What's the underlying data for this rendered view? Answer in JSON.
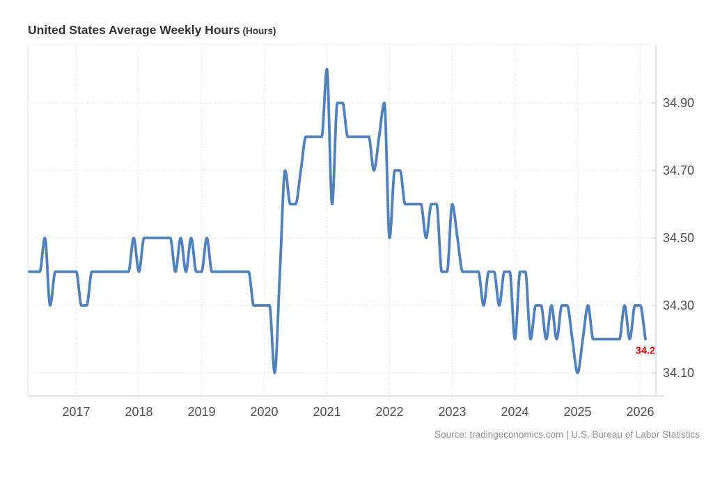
{
  "header": {
    "title": "United States Average Weekly Hours",
    "unit_suffix": " (Hours)"
  },
  "footer": {
    "source": "Source: tradingeconomics.com | U.S. Bureau of Labor Statistics"
  },
  "chart_data": {
    "type": "line",
    "title": "United States Average Weekly Hours",
    "ylabel": "Hours",
    "xlabel": "",
    "legend": "none",
    "grid": "dotted",
    "line_color": "#4f81bc",
    "last_value_label": "34.2",
    "last_value_color": "#e00000",
    "x_tick_labels": [
      "2017",
      "2018",
      "2019",
      "2020",
      "2021",
      "2022",
      "2023",
      "2024",
      "2025",
      "2026"
    ],
    "y_tick_labels": [
      "34.10",
      "34.30",
      "34.50",
      "34.70",
      "34.90"
    ],
    "y_ticks": [
      34.1,
      34.3,
      34.5,
      34.7,
      34.9
    ],
    "ylim": [
      34.03,
      35.07
    ],
    "frequency": "monthly",
    "start_period": "2016-04",
    "end_period": "2026-02",
    "series": [
      {
        "name": "United States Average Weekly Hours",
        "values": [
          34.4,
          34.4,
          34.4,
          34.5,
          34.3,
          34.4,
          34.4,
          34.4,
          34.4,
          34.4,
          34.3,
          34.3,
          34.4,
          34.4,
          34.4,
          34.4,
          34.4,
          34.4,
          34.4,
          34.4,
          34.5,
          34.4,
          34.5,
          34.5,
          34.5,
          34.5,
          34.5,
          34.5,
          34.4,
          34.5,
          34.4,
          34.5,
          34.4,
          34.4,
          34.5,
          34.4,
          34.4,
          34.4,
          34.4,
          34.4,
          34.4,
          34.4,
          34.4,
          34.3,
          34.3,
          34.3,
          34.3,
          34.1,
          34.4,
          34.7,
          34.6,
          34.6,
          34.7,
          34.8,
          34.8,
          34.8,
          34.8,
          35.0,
          34.6,
          34.9,
          34.9,
          34.8,
          34.8,
          34.8,
          34.8,
          34.8,
          34.7,
          34.8,
          34.9,
          34.5,
          34.7,
          34.7,
          34.6,
          34.6,
          34.6,
          34.6,
          34.5,
          34.6,
          34.6,
          34.4,
          34.4,
          34.6,
          34.5,
          34.4,
          34.4,
          34.4,
          34.4,
          34.3,
          34.4,
          34.4,
          34.3,
          34.4,
          34.4,
          34.2,
          34.4,
          34.4,
          34.2,
          34.3,
          34.3,
          34.2,
          34.3,
          34.2,
          34.3,
          34.3,
          34.2,
          34.1,
          34.2,
          34.3,
          34.2,
          34.2,
          34.2,
          34.2,
          34.2,
          34.2,
          34.3,
          34.2,
          34.3,
          34.3,
          34.2
        ]
      }
    ]
  }
}
